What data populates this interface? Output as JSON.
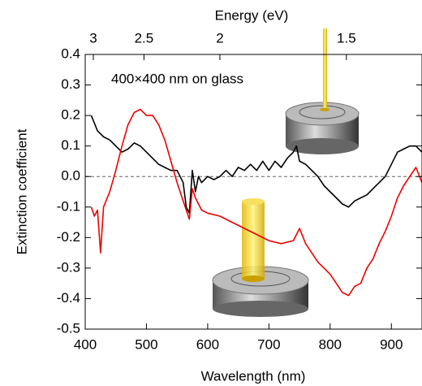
{
  "chart_data": {
    "type": "line",
    "xlabel": "Wavelength (nm)",
    "ylabel": "Extinction coefficient",
    "x2label": "Energy (eV)",
    "annotation": "400×400 nm on glass",
    "xlim": [
      400,
      950
    ],
    "xticks": [
      400,
      500,
      600,
      700,
      800,
      900
    ],
    "ylim": [
      -0.5,
      0.4
    ],
    "yticks": [
      -0.5,
      -0.4,
      -0.3,
      -0.2,
      -0.1,
      {
        "value": 0,
        "label": "0.0"
      },
      0.1,
      0.2,
      0.3,
      0.4
    ],
    "x2ticks": [
      3,
      2.5,
      2,
      1.5
    ],
    "series": [
      {
        "color": "#000000",
        "x": [
          410,
          420,
          430,
          440,
          450,
          460,
          470,
          480,
          490,
          500,
          510,
          520,
          530,
          540,
          550,
          560,
          565,
          570,
          575,
          580,
          585,
          590,
          600,
          610,
          620,
          630,
          640,
          650,
          660,
          670,
          680,
          690,
          700,
          710,
          720,
          730,
          740,
          745,
          750,
          760,
          770,
          780,
          790,
          800,
          810,
          820,
          830,
          840,
          850,
          860,
          870,
          880,
          890,
          900,
          910,
          920,
          930,
          940,
          950
        ],
        "values": [
          0.2,
          0.15,
          0.13,
          0.12,
          0.1,
          0.08,
          0.09,
          0.11,
          0.1,
          0.08,
          0.06,
          0.04,
          0.03,
          0.02,
          0.02,
          -0.02,
          -0.1,
          -0.12,
          0.02,
          -0.05,
          0.0,
          -0.02,
          0.0,
          -0.01,
          0.0,
          0.02,
          0.0,
          0.03,
          0.02,
          0.04,
          0.02,
          0.05,
          0.02,
          0.05,
          0.03,
          0.06,
          0.08,
          0.1,
          0.05,
          0.04,
          0.02,
          0.0,
          -0.03,
          -0.05,
          -0.07,
          -0.09,
          -0.1,
          -0.08,
          -0.07,
          -0.06,
          -0.04,
          -0.02,
          0.0,
          0.04,
          0.08,
          0.09,
          0.1,
          0.1,
          0.08
        ]
      },
      {
        "color": "#ee0000",
        "x": [
          410,
          415,
          420,
          425,
          430,
          440,
          450,
          460,
          470,
          480,
          490,
          500,
          510,
          520,
          530,
          540,
          550,
          560,
          570,
          575,
          580,
          590,
          600,
          620,
          640,
          660,
          680,
          700,
          720,
          740,
          750,
          760,
          780,
          800,
          810,
          820,
          830,
          840,
          850,
          860,
          870,
          880,
          890,
          900,
          910,
          920,
          930,
          940,
          950
        ],
        "values": [
          -0.1,
          -0.13,
          -0.11,
          -0.25,
          -0.1,
          -0.05,
          0.02,
          0.1,
          0.17,
          0.21,
          0.22,
          0.2,
          0.2,
          0.17,
          0.12,
          0.05,
          -0.02,
          -0.08,
          -0.14,
          -0.04,
          -0.07,
          -0.11,
          -0.12,
          -0.13,
          -0.15,
          -0.17,
          -0.19,
          -0.21,
          -0.22,
          -0.21,
          -0.17,
          -0.22,
          -0.28,
          -0.32,
          -0.35,
          -0.38,
          -0.39,
          -0.36,
          -0.35,
          -0.3,
          -0.27,
          -0.22,
          -0.18,
          -0.13,
          -0.07,
          -0.03,
          0.0,
          0.03,
          -0.02
        ]
      }
    ]
  }
}
